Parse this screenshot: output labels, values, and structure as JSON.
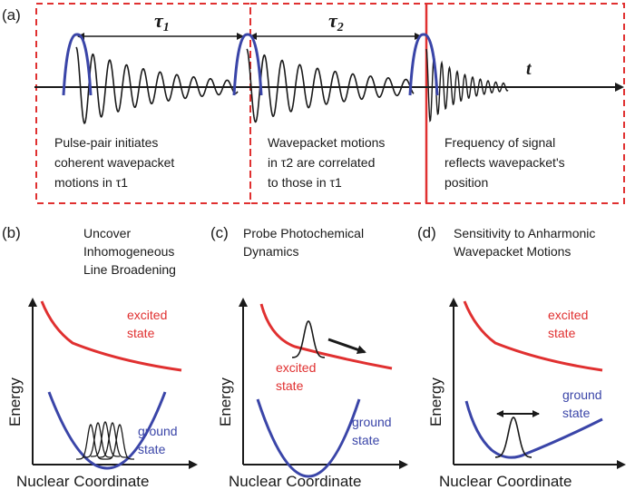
{
  "panel_a": {
    "label": "(a)",
    "tau1": "τ1",
    "tau2": "τ2",
    "t": "t",
    "box1": [
      "Pulse-pair initiates",
      "coherent wavepacket",
      "motions in τ1"
    ],
    "box2": [
      "Wavepacket motions",
      "in τ2 are correlated",
      "to those in τ1"
    ],
    "box3": [
      "Frequency of signal",
      "reflects wavepacket's",
      "position"
    ]
  },
  "panel_b": {
    "label": "(b)",
    "title": [
      "Uncover",
      "Inhomogeneous",
      "Line Broadening"
    ],
    "excited": [
      "excited",
      "state"
    ],
    "ground": [
      "ground",
      "state"
    ],
    "ylabel": "Energy",
    "xlabel": "Nuclear Coordinate"
  },
  "panel_c": {
    "label": "(c)",
    "title": [
      "Probe Photochemical",
      "Dynamics"
    ],
    "excited": [
      "excited",
      "state"
    ],
    "ground": [
      "ground",
      "state"
    ],
    "ylabel": "Energy",
    "xlabel": "Nuclear Coordinate"
  },
  "panel_d": {
    "label": "(d)",
    "title": [
      "Sensitivity to Anharmonic",
      "Wavepacket Motions"
    ],
    "excited": [
      "excited",
      "state"
    ],
    "ground": [
      "ground",
      "state"
    ],
    "ylabel": "Energy",
    "xlabel": "Nuclear Coordinate"
  },
  "colors": {
    "red": "#e03030",
    "blue": "#3a45a8",
    "dash": "#e03030"
  }
}
